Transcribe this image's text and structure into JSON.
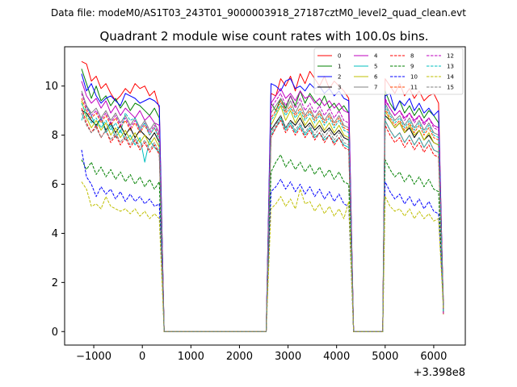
{
  "suptitle": "Data file: modeM0/AS1T03_243T01_9000003918_27187cztM0_level2_quad_clean.evt",
  "chart_data": {
    "type": "line",
    "title": "Quadrant 2 module wise count rates with 100.0s bins.",
    "xlabel": "",
    "ylabel": "",
    "x_offset_label": "+3.398e8",
    "xlim": [
      -1600,
      6650
    ],
    "ylim": [
      -0.55,
      11.6
    ],
    "xticks": [
      -1000,
      0,
      1000,
      2000,
      3000,
      4000,
      5000,
      6000
    ],
    "xtick_labels": [
      "−1000",
      "0",
      "1000",
      "2000",
      "3000",
      "4000",
      "5000",
      "6000"
    ],
    "yticks": [
      0,
      2,
      4,
      6,
      8,
      10
    ],
    "ytick_labels": [
      "0",
      "2",
      "4",
      "6",
      "8",
      "10"
    ],
    "grid": false,
    "legend_position": "top-right",
    "legend_columns": 4,
    "segments": [
      {
        "start": -1250,
        "n": 17
      },
      {
        "start": 2650,
        "n": 17
      },
      {
        "start": 5000,
        "n": 12
      }
    ],
    "series": [
      {
        "name": "0",
        "color": "#ff0000",
        "dash": "solid",
        "values": [
          [
            11.0,
            10.9,
            10.2,
            10.4,
            9.9,
            10.1,
            9.7,
            9.4,
            9.6,
            9.9,
            9.7,
            10.1,
            9.9,
            10.0,
            9.6,
            9.8,
            9.1
          ],
          [
            9.7,
            9.6,
            10.3,
            10.0,
            10.4,
            9.8,
            10.5,
            10.1,
            10.6,
            10.3,
            10.0,
            10.4,
            9.9,
            10.2,
            10.0,
            9.8,
            9.5
          ],
          [
            10.3,
            10.0,
            9.7,
            10.1,
            9.6,
            9.9,
            9.5,
            9.8,
            9.4,
            9.6,
            9.7,
            9.3
          ]
        ]
      },
      {
        "name": "1",
        "color": "#008000",
        "dash": "solid",
        "values": [
          [
            10.7,
            10.1,
            9.5,
            10.0,
            9.4,
            9.6,
            9.2,
            9.5,
            9.1,
            9.4,
            9.0,
            9.3,
            9.2,
            9.0,
            8.8,
            9.1,
            8.7
          ],
          [
            9.3,
            9.0,
            9.5,
            9.1,
            9.6,
            9.2,
            9.8,
            9.3,
            9.7,
            9.4,
            9.2,
            9.6,
            9.1,
            9.3,
            9.0,
            9.2,
            8.9
          ],
          [
            9.8,
            9.3,
            9.0,
            9.4,
            8.9,
            9.2,
            8.8,
            9.1,
            8.7,
            9.0,
            8.8,
            8.5
          ]
        ]
      },
      {
        "name": "2",
        "color": "#0000ff",
        "dash": "solid",
        "values": [
          [
            10.5,
            9.8,
            10.1,
            9.6,
            9.3,
            9.5,
            9.6,
            9.4,
            9.2,
            9.7,
            9.6,
            9.5,
            9.3,
            9.4,
            9.5,
            9.4,
            9.2
          ],
          [
            10.1,
            10.0,
            9.8,
            10.2,
            10.3,
            9.9,
            10.0,
            9.8,
            10.1,
            9.9,
            10.0,
            9.7,
            9.9,
            9.6,
            9.8,
            9.5,
            9.4
          ],
          [
            9.6,
            9.7,
            9.0,
            9.4,
            9.2,
            9.5,
            9.0,
            9.3,
            8.9,
            9.1,
            8.8,
            9.0
          ]
        ]
      },
      {
        "name": "3",
        "color": "#000000",
        "dash": "solid",
        "values": [
          [
            9.0,
            8.9,
            8.6,
            8.4,
            8.7,
            8.2,
            8.5,
            8.1,
            8.4,
            8.0,
            8.3,
            7.9,
            8.2,
            8.0,
            7.8,
            8.1,
            7.7
          ],
          [
            8.2,
            8.5,
            8.8,
            8.3,
            8.6,
            8.4,
            8.7,
            8.3,
            8.5,
            8.2,
            8.4,
            8.1,
            8.3,
            8.0,
            8.2,
            7.9,
            7.8
          ],
          [
            8.8,
            8.6,
            8.3,
            8.5,
            8.1,
            8.3,
            7.9,
            8.2,
            7.8,
            8.0,
            7.7,
            7.6
          ]
        ]
      },
      {
        "name": "4",
        "color": "#bf00bf",
        "dash": "solid",
        "values": [
          [
            10.2,
            9.6,
            9.3,
            9.5,
            9.1,
            9.4,
            8.9,
            9.2,
            8.8,
            9.1,
            8.9,
            8.7,
            9.0,
            8.6,
            8.8,
            8.5,
            8.4
          ],
          [
            9.3,
            9.6,
            9.9,
            9.5,
            9.7,
            9.4,
            9.8,
            9.5,
            9.6,
            9.3,
            9.5,
            9.2,
            9.4,
            9.1,
            9.3,
            9.0,
            8.9
          ],
          [
            9.4,
            9.1,
            8.8,
            9.0,
            8.7,
            8.9,
            8.6,
            8.8,
            8.5,
            8.7,
            8.4,
            8.3
          ]
        ]
      },
      {
        "name": "5",
        "color": "#00bfbf",
        "dash": "solid",
        "values": [
          [
            8.6,
            9.2,
            8.8,
            8.3,
            8.7,
            8.1,
            8.4,
            7.9,
            8.2,
            7.8,
            8.0,
            7.6,
            7.9,
            6.9,
            7.8,
            7.5,
            7.3
          ],
          [
            8.0,
            8.3,
            8.7,
            8.2,
            8.5,
            8.1,
            8.4,
            8.0,
            8.3,
            7.9,
            8.1,
            7.8,
            8.0,
            7.7,
            7.9,
            7.6,
            7.5
          ],
          [
            8.6,
            8.2,
            7.9,
            8.1,
            7.7,
            8.0,
            7.6,
            7.9,
            7.5,
            7.8,
            7.4,
            7.3
          ]
        ]
      },
      {
        "name": "6",
        "color": "#bfbf00",
        "dash": "solid",
        "values": [
          [
            9.4,
            8.7,
            8.3,
            8.6,
            8.2,
            8.5,
            8.0,
            8.3,
            7.9,
            8.2,
            7.8,
            8.1,
            7.7,
            8.0,
            7.6,
            7.9,
            7.5
          ],
          [
            8.4,
            8.8,
            9.2,
            8.6,
            9.0,
            8.5,
            8.9,
            8.4,
            8.7,
            8.3,
            8.6,
            8.2,
            8.5,
            8.1,
            8.4,
            8.0,
            7.9
          ],
          [
            9.0,
            8.6,
            8.3,
            8.5,
            8.1,
            8.4,
            8.0,
            8.2,
            7.8,
            8.1,
            7.7,
            7.6
          ]
        ]
      },
      {
        "name": "7",
        "color": "#808080",
        "dash": "solid",
        "values": [
          [
            9.8,
            9.2,
            8.9,
            9.1,
            8.7,
            9.0,
            8.6,
            8.9,
            8.5,
            8.8,
            8.4,
            8.7,
            8.3,
            8.6,
            8.2,
            8.5,
            8.1
          ],
          [
            8.9,
            9.2,
            9.5,
            9.0,
            9.4,
            8.9,
            9.3,
            8.8,
            9.1,
            8.7,
            9.0,
            8.6,
            8.9,
            8.5,
            8.8,
            8.4,
            8.3
          ],
          [
            9.3,
            8.9,
            8.6,
            8.8,
            8.4,
            8.7,
            8.3,
            8.6,
            8.2,
            8.5,
            8.1,
            8.0
          ]
        ]
      },
      {
        "name": "8",
        "color": "#ff0000",
        "dash": "dashed",
        "values": [
          [
            9.1,
            8.5,
            8.1,
            8.4,
            7.9,
            8.2,
            7.7,
            8.0,
            7.6,
            7.9,
            7.5,
            7.8,
            7.4,
            7.7,
            7.3,
            7.6,
            7.2
          ],
          [
            7.9,
            8.3,
            8.6,
            8.1,
            8.4,
            8.0,
            8.3,
            7.9,
            8.2,
            7.8,
            8.1,
            7.7,
            8.0,
            7.6,
            7.9,
            7.5,
            7.4
          ],
          [
            8.4,
            8.0,
            7.7,
            7.9,
            7.5,
            7.8,
            7.4,
            7.7,
            7.3,
            7.6,
            7.2,
            7.1
          ]
        ]
      },
      {
        "name": "9",
        "color": "#008000",
        "dash": "dashed",
        "values": [
          [
            7.0,
            6.6,
            6.9,
            6.4,
            6.7,
            6.3,
            6.6,
            6.2,
            6.5,
            6.1,
            6.4,
            6.0,
            6.3,
            5.9,
            6.2,
            5.8,
            6.1
          ],
          [
            6.5,
            6.9,
            7.2,
            6.7,
            7.0,
            6.6,
            6.9,
            6.5,
            6.8,
            6.4,
            6.7,
            6.3,
            6.6,
            6.2,
            6.5,
            6.1,
            6.0
          ],
          [
            7.0,
            6.6,
            6.3,
            6.5,
            6.1,
            6.4,
            6.0,
            6.3,
            5.9,
            6.2,
            5.8,
            5.7
          ]
        ]
      },
      {
        "name": "10",
        "color": "#0000ff",
        "dash": "dashed",
        "values": [
          [
            7.4,
            6.3,
            6.0,
            5.5,
            5.9,
            5.6,
            5.8,
            5.4,
            5.7,
            5.3,
            5.6,
            5.3,
            5.5,
            5.2,
            5.4,
            5.1,
            5.2
          ],
          [
            5.7,
            5.9,
            6.2,
            5.8,
            6.1,
            5.7,
            6.0,
            5.6,
            5.9,
            5.5,
            5.8,
            5.4,
            5.7,
            5.3,
            5.6,
            5.2,
            5.1
          ],
          [
            6.1,
            5.7,
            5.4,
            5.6,
            5.2,
            5.5,
            5.1,
            5.4,
            5.0,
            5.3,
            4.9,
            4.8
          ]
        ]
      },
      {
        "name": "11",
        "color": "#ff4500",
        "dash": "dashed",
        "values": [
          [
            9.5,
            9.0,
            8.7,
            8.9,
            8.5,
            8.8,
            8.4,
            8.7,
            8.3,
            8.6,
            8.2,
            8.5,
            8.1,
            8.4,
            8.0,
            8.3,
            7.9
          ],
          [
            8.7,
            9.0,
            9.4,
            8.9,
            9.2,
            8.8,
            9.1,
            8.7,
            9.0,
            8.6,
            8.9,
            8.5,
            8.8,
            8.4,
            8.7,
            8.3,
            8.2
          ],
          [
            9.1,
            8.7,
            8.4,
            8.6,
            8.2,
            8.5,
            8.1,
            8.4,
            8.0,
            8.3,
            7.9,
            7.8
          ]
        ]
      },
      {
        "name": "12",
        "color": "#bf00bf",
        "dash": "dashed",
        "values": [
          [
            9.7,
            9.1,
            8.8,
            9.0,
            8.6,
            8.9,
            8.5,
            8.8,
            8.4,
            8.7,
            8.3,
            8.6,
            8.2,
            8.5,
            8.1,
            8.4,
            8.0
          ],
          [
            9.1,
            9.4,
            9.7,
            9.2,
            9.6,
            9.1,
            9.5,
            9.0,
            9.3,
            8.9,
            9.2,
            8.8,
            9.1,
            8.7,
            9.0,
            8.6,
            8.5
          ],
          [
            9.5,
            9.1,
            8.8,
            9.0,
            8.6,
            8.9,
            8.5,
            8.8,
            8.4,
            8.7,
            8.3,
            8.2
          ]
        ]
      },
      {
        "name": "13",
        "color": "#00bfbf",
        "dash": "dashed",
        "values": [
          [
            9.3,
            8.8,
            8.5,
            8.7,
            8.3,
            8.6,
            8.2,
            8.5,
            8.1,
            8.9,
            8.6,
            8.7,
            8.2,
            8.5,
            8.0,
            8.3,
            7.8
          ],
          [
            8.6,
            8.9,
            9.3,
            8.8,
            9.1,
            8.7,
            9.0,
            8.6,
            8.9,
            8.5,
            8.8,
            8.4,
            8.7,
            8.3,
            8.6,
            8.2,
            8.1
          ],
          [
            9.2,
            8.8,
            8.5,
            8.7,
            8.3,
            8.6,
            8.2,
            8.5,
            8.1,
            8.4,
            8.0,
            7.9
          ]
        ]
      },
      {
        "name": "14",
        "color": "#bfbf00",
        "dash": "dashed",
        "values": [
          [
            6.1,
            5.8,
            5.1,
            5.2,
            5.0,
            5.5,
            5.1,
            5.0,
            4.9,
            5.0,
            4.8,
            5.0,
            4.7,
            4.9,
            4.6,
            4.8,
            4.6
          ],
          [
            5.0,
            5.2,
            5.5,
            5.1,
            5.4,
            5.0,
            5.8,
            5.2,
            5.3,
            4.9,
            5.2,
            4.8,
            5.1,
            4.7,
            5.0,
            4.6,
            5.3
          ],
          [
            5.5,
            5.1,
            4.9,
            5.0,
            4.7,
            5.0,
            4.6,
            4.9,
            4.6,
            4.8,
            4.5,
            4.6
          ]
        ]
      },
      {
        "name": "15",
        "color": "#808080",
        "dash": "dashed",
        "values": [
          [
            8.9,
            8.4,
            8.1,
            8.3,
            7.9,
            8.2,
            7.8,
            8.1,
            7.7,
            8.0,
            7.6,
            7.9,
            7.5,
            7.8,
            7.4,
            7.7,
            7.3
          ],
          [
            8.1,
            8.4,
            8.8,
            8.3,
            8.6,
            8.2,
            8.5,
            8.1,
            8.4,
            8.0,
            8.3,
            7.9,
            8.2,
            7.8,
            8.1,
            7.7,
            7.6
          ],
          [
            8.6,
            8.2,
            7.9,
            8.1,
            7.7,
            8.0,
            7.6,
            7.9,
            7.5,
            7.8,
            7.4,
            7.3
          ]
        ]
      }
    ]
  }
}
